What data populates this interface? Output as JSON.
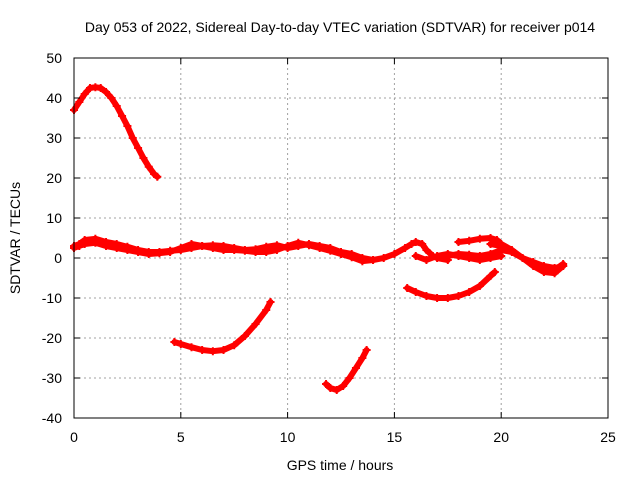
{
  "chart_data": {
    "type": "line",
    "title": "Day 053 of 2022, Sidereal Day-to-day VTEC variation (SDTVAR) for receiver p014",
    "xlabel": "GPS time / hours",
    "ylabel": "SDTVAR / TECUs",
    "xlim": [
      0,
      25
    ],
    "ylim": [
      -40,
      50
    ],
    "xticks": [
      0,
      5,
      10,
      15,
      20,
      25
    ],
    "yticks": [
      -40,
      -30,
      -20,
      -10,
      0,
      10,
      20,
      30,
      40,
      50
    ],
    "grid": true,
    "series_color": "#ff0000",
    "series": [
      {
        "name": "satellite-track-1",
        "x": [
          0.0,
          0.25,
          0.5,
          0.75,
          1.0,
          1.25,
          1.5,
          1.75,
          2.0,
          2.25,
          2.5,
          2.75,
          3.0,
          3.25,
          3.5,
          3.75,
          3.9
        ],
        "y": [
          37.0,
          39.0,
          41.0,
          42.5,
          42.7,
          42.5,
          41.5,
          40.0,
          38.0,
          35.5,
          33.0,
          30.0,
          27.5,
          25.0,
          22.8,
          21.0,
          20.3
        ]
      },
      {
        "name": "satellite-track-2",
        "x": [
          0.0,
          0.25,
          0.5,
          1.0,
          1.5,
          2.0,
          2.5,
          3.0,
          3.5,
          4.0,
          4.5,
          5.0,
          5.5,
          6.0,
          6.5,
          7.0,
          7.5,
          8.0,
          8.5,
          9.0,
          9.5,
          10.0,
          10.5,
          11.0,
          11.5,
          12.0,
          12.5,
          13.0,
          13.5,
          14.0
        ],
        "y": [
          3.0,
          3.5,
          4.5,
          4.8,
          4.0,
          3.5,
          2.8,
          2.0,
          1.5,
          1.5,
          1.8,
          2.0,
          2.5,
          3.0,
          3.2,
          3.0,
          2.5,
          2.0,
          2.2,
          2.8,
          3.2,
          2.5,
          3.0,
          3.5,
          3.0,
          2.5,
          1.5,
          1.0,
          0.0,
          -0.5
        ]
      },
      {
        "name": "satellite-track-3",
        "x": [
          0.0,
          0.25,
          0.5,
          1.0,
          1.5,
          2.0,
          2.5,
          3.0,
          3.5,
          4.0,
          4.5,
          5.0,
          5.5,
          6.0,
          6.5,
          7.0,
          7.5,
          8.0,
          8.5,
          9.0,
          9.5,
          10.0,
          10.5,
          11.0,
          11.5,
          12.0,
          12.5,
          13.0,
          13.5,
          14.0
        ],
        "y": [
          2.5,
          3.0,
          3.5,
          3.8,
          3.0,
          2.5,
          2.0,
          1.5,
          1.0,
          1.2,
          1.5,
          2.5,
          3.5,
          3.0,
          2.5,
          2.0,
          2.0,
          1.8,
          1.5,
          1.5,
          2.0,
          3.0,
          3.8,
          3.2,
          2.5,
          1.8,
          1.0,
          0.2,
          -0.8,
          -0.5
        ]
      },
      {
        "name": "satellite-track-4",
        "x": [
          4.7,
          5.0,
          5.5,
          6.0,
          6.5,
          7.0,
          7.5,
          8.0,
          8.5,
          9.0,
          9.2
        ],
        "y": [
          -21.0,
          -21.5,
          -22.3,
          -23.0,
          -23.3,
          -23.0,
          -21.8,
          -19.5,
          -16.5,
          -13.0,
          -11.0
        ]
      },
      {
        "name": "satellite-track-5",
        "x": [
          11.8,
          12.0,
          12.3,
          12.6,
          12.9,
          13.2,
          13.5,
          13.7
        ],
        "y": [
          -31.5,
          -32.5,
          -33.0,
          -32.0,
          -30.0,
          -27.5,
          -25.0,
          -23.0
        ]
      },
      {
        "name": "satellite-track-6",
        "x": [
          14.0,
          14.5,
          15.0,
          15.5,
          15.8,
          16.0,
          16.3,
          16.5,
          16.8,
          17.0,
          17.5
        ],
        "y": [
          -0.5,
          0.0,
          1.0,
          2.5,
          3.5,
          4.0,
          3.5,
          2.0,
          0.5,
          0.0,
          -0.5
        ]
      },
      {
        "name": "satellite-track-7",
        "x": [
          15.6,
          16.0,
          16.5,
          17.0,
          17.5,
          18.0,
          18.5,
          19.0,
          19.5,
          19.7
        ],
        "y": [
          -7.5,
          -8.5,
          -9.5,
          -10.0,
          -10.0,
          -9.5,
          -8.5,
          -7.0,
          -4.5,
          -3.5
        ]
      },
      {
        "name": "satellite-track-8",
        "x": [
          17.5,
          18.0,
          18.5,
          19.0,
          19.5,
          20.0,
          20.5,
          21.0,
          21.5,
          22.0,
          22.5,
          22.9
        ],
        "y": [
          0.5,
          1.0,
          0.8,
          0.5,
          1.0,
          2.0,
          1.5,
          0.0,
          -1.5,
          -2.5,
          -3.0,
          -1.5
        ]
      },
      {
        "name": "satellite-track-9",
        "x": [
          18.0,
          18.5,
          19.0,
          19.5,
          19.8,
          20.0,
          20.5,
          21.0,
          21.5,
          22.0,
          22.5,
          22.9
        ],
        "y": [
          4.0,
          4.3,
          4.8,
          5.0,
          4.5,
          3.5,
          2.0,
          0.0,
          -2.0,
          -3.5,
          -3.8,
          -2.0
        ]
      },
      {
        "name": "satellite-track-10",
        "x": [
          19.5,
          20.0,
          20.5,
          21.0,
          21.5,
          22.0,
          22.5,
          22.9
        ],
        "y": [
          3.5,
          3.0,
          1.5,
          0.0,
          -1.0,
          -2.0,
          -2.5,
          -2.0
        ]
      },
      {
        "name": "satellite-track-11",
        "x": [
          16.0,
          16.5,
          17.0,
          17.5,
          18.0,
          18.5,
          19.0,
          19.5,
          20.0
        ],
        "y": [
          0.5,
          -0.5,
          0.5,
          1.0,
          0.5,
          0.0,
          -0.5,
          0.0,
          0.5
        ]
      }
    ]
  }
}
